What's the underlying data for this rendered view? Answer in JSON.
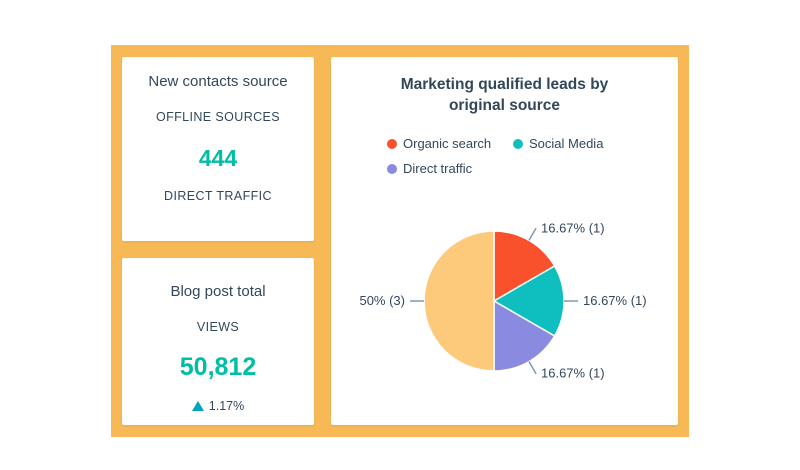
{
  "contacts_card": {
    "title": "New contacts source",
    "label_top": "OFFLINE SOURCES",
    "value": "444",
    "label_bottom": "DIRECT TRAFFIC"
  },
  "blog_card": {
    "title": "Blog post total",
    "label": "VIEWS",
    "value": "50,812",
    "change": "1.17%",
    "change_direction": "up",
    "change_color": "#00a4bd"
  },
  "leads_card": {
    "title_line1": "Marketing qualified leads by",
    "title_line2": "original source",
    "legend": [
      {
        "name": "Organic search",
        "color": "#f8512c"
      },
      {
        "name": "Social Media",
        "color": "#0fbfbf"
      },
      {
        "name": "Direct traffic",
        "color": "#8a8ae0"
      }
    ]
  },
  "chart_data": {
    "type": "pie",
    "slices": [
      {
        "name": "Organic search",
        "value": 1,
        "percent": 16.67,
        "label": "16.67% (1)",
        "color": "#f8512c"
      },
      {
        "name": "Social Media",
        "value": 1,
        "percent": 16.67,
        "label": "16.67% (1)",
        "color": "#0fbfbf"
      },
      {
        "name": "Direct traffic",
        "value": 1,
        "percent": 16.67,
        "label": "16.67% (1)",
        "color": "#8a8ae0"
      },
      {
        "name": "",
        "value": 3,
        "percent": 50,
        "label": "50% (3)",
        "color": "#fdc97a"
      }
    ],
    "title": "Marketing qualified leads by original source",
    "legend_position": "top"
  },
  "colors": {
    "frame": "#f7b955",
    "accent_teal": "#00bda5",
    "text": "#33475b"
  }
}
